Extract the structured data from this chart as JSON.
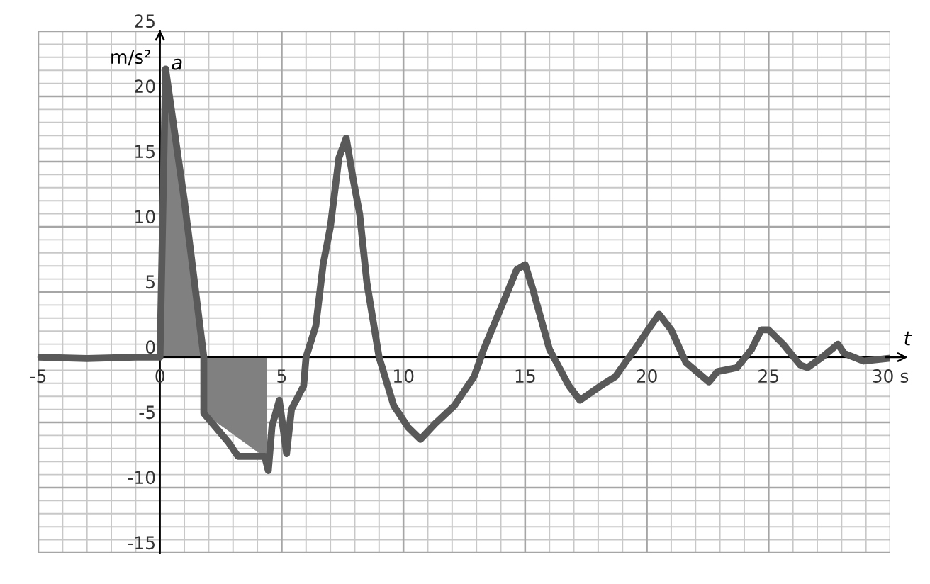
{
  "chart_data": {
    "type": "line",
    "xlabel": "t",
    "ylabel": "a",
    "annotations": [
      "m/s²"
    ],
    "xlim": [
      -5,
      30
    ],
    "ylim": [
      -15,
      25
    ],
    "xticks": [
      -5,
      0,
      5,
      10,
      15,
      20,
      25,
      {
        "value": 30,
        "label": "30 s"
      }
    ],
    "yticks": [
      -15,
      -10,
      -5,
      0,
      5,
      10,
      15,
      20,
      25
    ],
    "grid": true,
    "series": [
      {
        "type": "area",
        "color": "#808080",
        "x": [
          0,
          0.23,
          1.8,
          1.8,
          4.4,
          4.4
        ],
        "values": [
          0,
          22.1,
          0,
          -4.3,
          -7.8,
          0
        ]
      },
      {
        "color": "#595959",
        "x": [
          -5,
          -3,
          -1,
          0,
          0.23,
          1.0,
          1.8,
          1.8,
          2.8,
          3.2,
          4.3,
          4.45,
          4.6,
          4.9,
          5.2,
          5.4,
          5.9,
          6.0,
          6.4,
          6.7,
          7.0,
          7.35,
          7.65,
          7.95,
          8.2,
          8.5,
          9.0,
          9.6,
          10.2,
          10.7,
          11.3,
          12.1,
          12.9,
          13.3,
          14.1,
          14.65,
          15.0,
          15.3,
          16.0,
          16.8,
          17.25,
          18.1,
          18.7,
          19.5,
          20.05,
          20.5,
          21.0,
          21.6,
          22.55,
          22.9,
          23.7,
          24.3,
          24.7,
          25.0,
          25.6,
          26.3,
          26.6,
          27.2,
          27.85,
          28.1,
          28.9,
          29.9
        ],
        "values": [
          0,
          -0.1,
          0,
          0,
          22.1,
          12,
          0,
          -4.3,
          -6.5,
          -7.6,
          -7.6,
          -8.7,
          -5.3,
          -3.3,
          -7.4,
          -4,
          -2.2,
          0,
          2.4,
          7.1,
          10,
          15.3,
          16.8,
          13.5,
          11,
          5.7,
          0,
          -3.7,
          -5.4,
          -6.3,
          -5.1,
          -3.7,
          -1.5,
          0.6,
          4.2,
          6.7,
          7.1,
          5.3,
          0.6,
          -2.2,
          -3.3,
          -2.2,
          -1.5,
          0.6,
          2.1,
          3.3,
          2.1,
          -0.4,
          -1.9,
          -1.1,
          -0.8,
          0.6,
          2.1,
          2.1,
          1.0,
          -0.6,
          -0.8,
          0,
          1.0,
          0.3,
          -0.3,
          -0.1
        ]
      }
    ]
  }
}
